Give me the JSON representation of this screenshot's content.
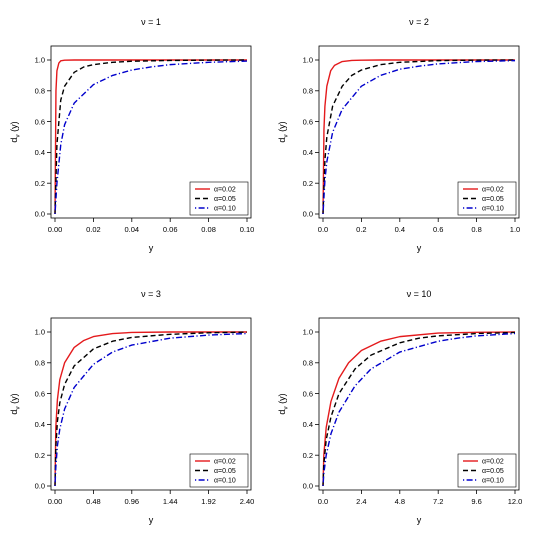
{
  "chart_data": [
    {
      "type": "line",
      "title": "ν = 1",
      "xlabel": "y",
      "ylabel_main": "d",
      "ylabel_sub": "ν",
      "ylabel_tail": " (y)",
      "xlim": [
        0,
        0.1
      ],
      "ylim": [
        0,
        1.0
      ],
      "xticks": [
        "0.00",
        "0.02",
        "0.04",
        "0.06",
        "0.08",
        "0.10"
      ],
      "yticks": [
        "0.0",
        "0.2",
        "0.4",
        "0.6",
        "0.8",
        "1.0"
      ],
      "legend_position": "bottom-right",
      "series": [
        {
          "name": "α=0.02",
          "color": "#e41a1c",
          "style": "solid",
          "x": [
            0,
            0.0005,
            0.001,
            0.002,
            0.003,
            0.005,
            0.01,
            0.02,
            0.04,
            0.06,
            0.08,
            0.1
          ],
          "y": [
            0,
            0.8,
            0.93,
            0.98,
            0.995,
            0.999,
            1.0,
            1.0,
            1.0,
            1.0,
            1.0,
            1.0
          ]
        },
        {
          "name": "α=0.05",
          "color": "#000000",
          "style": "dashed",
          "x": [
            0,
            0.001,
            0.003,
            0.005,
            0.01,
            0.015,
            0.02,
            0.03,
            0.04,
            0.06,
            0.08,
            0.1
          ],
          "y": [
            0,
            0.45,
            0.74,
            0.83,
            0.92,
            0.955,
            0.97,
            0.985,
            0.992,
            0.997,
            0.999,
            1.0
          ]
        },
        {
          "name": "α=0.10",
          "color": "#0000cc",
          "style": "dotdash",
          "x": [
            0,
            0.001,
            0.003,
            0.005,
            0.01,
            0.02,
            0.03,
            0.04,
            0.05,
            0.06,
            0.08,
            0.1
          ],
          "y": [
            0,
            0.2,
            0.45,
            0.58,
            0.72,
            0.84,
            0.9,
            0.935,
            0.955,
            0.97,
            0.985,
            0.993
          ]
        }
      ]
    },
    {
      "type": "line",
      "title": "ν = 2",
      "xlabel": "y",
      "ylabel_main": "d",
      "ylabel_sub": "ν",
      "ylabel_tail": " (y)",
      "xlim": [
        0,
        1.0
      ],
      "ylim": [
        0,
        1.0
      ],
      "xticks": [
        "0.0",
        "0.2",
        "0.4",
        "0.6",
        "0.8",
        "1.0"
      ],
      "yticks": [
        "0.0",
        "0.2",
        "0.4",
        "0.6",
        "0.8",
        "1.0"
      ],
      "legend_position": "bottom-right",
      "series": [
        {
          "name": "α=0.02",
          "color": "#e41a1c",
          "style": "solid",
          "x": [
            0,
            0.005,
            0.01,
            0.02,
            0.04,
            0.06,
            0.1,
            0.15,
            0.2,
            0.3,
            0.5,
            1.0
          ],
          "y": [
            0,
            0.55,
            0.7,
            0.83,
            0.93,
            0.965,
            0.99,
            0.997,
            0.999,
            1.0,
            1.0,
            1.0
          ]
        },
        {
          "name": "α=0.05",
          "color": "#000000",
          "style": "dashed",
          "x": [
            0,
            0.01,
            0.02,
            0.05,
            0.1,
            0.15,
            0.2,
            0.3,
            0.4,
            0.6,
            0.8,
            1.0
          ],
          "y": [
            0,
            0.35,
            0.5,
            0.7,
            0.83,
            0.9,
            0.935,
            0.97,
            0.985,
            0.996,
            0.999,
            1.0
          ]
        },
        {
          "name": "α=0.10",
          "color": "#0000cc",
          "style": "dotdash",
          "x": [
            0,
            0.01,
            0.02,
            0.05,
            0.1,
            0.2,
            0.3,
            0.4,
            0.5,
            0.6,
            0.8,
            1.0
          ],
          "y": [
            0,
            0.22,
            0.34,
            0.53,
            0.68,
            0.83,
            0.9,
            0.94,
            0.96,
            0.975,
            0.99,
            0.996
          ]
        }
      ]
    },
    {
      "type": "line",
      "title": "ν = 3",
      "xlabel": "y",
      "ylabel_main": "d",
      "ylabel_sub": "ν",
      "ylabel_tail": " (y)",
      "xlim": [
        0,
        2.4
      ],
      "ylim": [
        0,
        1.0
      ],
      "xticks": [
        "0.00",
        "0.48",
        "0.96",
        "1.44",
        "1.92",
        "2.40"
      ],
      "yticks": [
        "0.0",
        "0.2",
        "0.4",
        "0.6",
        "0.8",
        "1.0"
      ],
      "legend_position": "bottom-right",
      "series": [
        {
          "name": "α=0.02",
          "color": "#e41a1c",
          "style": "solid",
          "x": [
            0,
            0.01,
            0.03,
            0.06,
            0.12,
            0.24,
            0.36,
            0.48,
            0.72,
            0.96,
            1.44,
            2.4
          ],
          "y": [
            0,
            0.38,
            0.56,
            0.69,
            0.8,
            0.9,
            0.945,
            0.97,
            0.99,
            0.997,
            1.0,
            1.0
          ]
        },
        {
          "name": "α=0.05",
          "color": "#000000",
          "style": "dashed",
          "x": [
            0,
            0.01,
            0.03,
            0.06,
            0.12,
            0.24,
            0.48,
            0.72,
            0.96,
            1.44,
            1.92,
            2.4
          ],
          "y": [
            0,
            0.25,
            0.42,
            0.54,
            0.66,
            0.78,
            0.89,
            0.94,
            0.965,
            0.985,
            0.995,
            0.999
          ]
        },
        {
          "name": "α=0.10",
          "color": "#0000cc",
          "style": "dotdash",
          "x": [
            0,
            0.01,
            0.03,
            0.06,
            0.12,
            0.24,
            0.48,
            0.72,
            0.96,
            1.44,
            1.92,
            2.4
          ],
          "y": [
            0,
            0.12,
            0.26,
            0.37,
            0.5,
            0.64,
            0.79,
            0.87,
            0.915,
            0.96,
            0.98,
            0.99
          ]
        }
      ]
    },
    {
      "type": "line",
      "title": "ν = 10",
      "xlabel": "y",
      "ylabel_main": "d",
      "ylabel_sub": "ν",
      "ylabel_tail": " (y)",
      "xlim": [
        0,
        12.0
      ],
      "ylim": [
        0,
        1.0
      ],
      "xticks": [
        "0.0",
        "2.4",
        "4.8",
        "7.2",
        "9.6",
        "12.0"
      ],
      "yticks": [
        "0.0",
        "0.2",
        "0.4",
        "0.6",
        "0.8",
        "1.0"
      ],
      "legend_position": "bottom-right",
      "series": [
        {
          "name": "α=0.02",
          "color": "#e41a1c",
          "style": "solid",
          "x": [
            0,
            0.05,
            0.2,
            0.5,
            1.0,
            1.6,
            2.4,
            3.6,
            4.8,
            7.2,
            9.6,
            12.0
          ],
          "y": [
            0,
            0.2,
            0.38,
            0.55,
            0.7,
            0.8,
            0.88,
            0.94,
            0.97,
            0.993,
            0.998,
            1.0
          ]
        },
        {
          "name": "α=0.05",
          "color": "#000000",
          "style": "dashed",
          "x": [
            0,
            0.05,
            0.2,
            0.5,
            1.0,
            2.0,
            3.0,
            4.8,
            6.0,
            7.2,
            9.6,
            12.0
          ],
          "y": [
            0,
            0.14,
            0.3,
            0.45,
            0.6,
            0.76,
            0.85,
            0.93,
            0.96,
            0.975,
            0.99,
            0.997
          ]
        },
        {
          "name": "α=0.10",
          "color": "#0000cc",
          "style": "dotdash",
          "x": [
            0,
            0.05,
            0.2,
            0.5,
            1.0,
            2.0,
            3.0,
            4.8,
            7.2,
            8.4,
            9.6,
            12.0
          ],
          "y": [
            0,
            0.08,
            0.2,
            0.34,
            0.48,
            0.65,
            0.76,
            0.87,
            0.94,
            0.96,
            0.975,
            0.99
          ]
        }
      ]
    }
  ]
}
